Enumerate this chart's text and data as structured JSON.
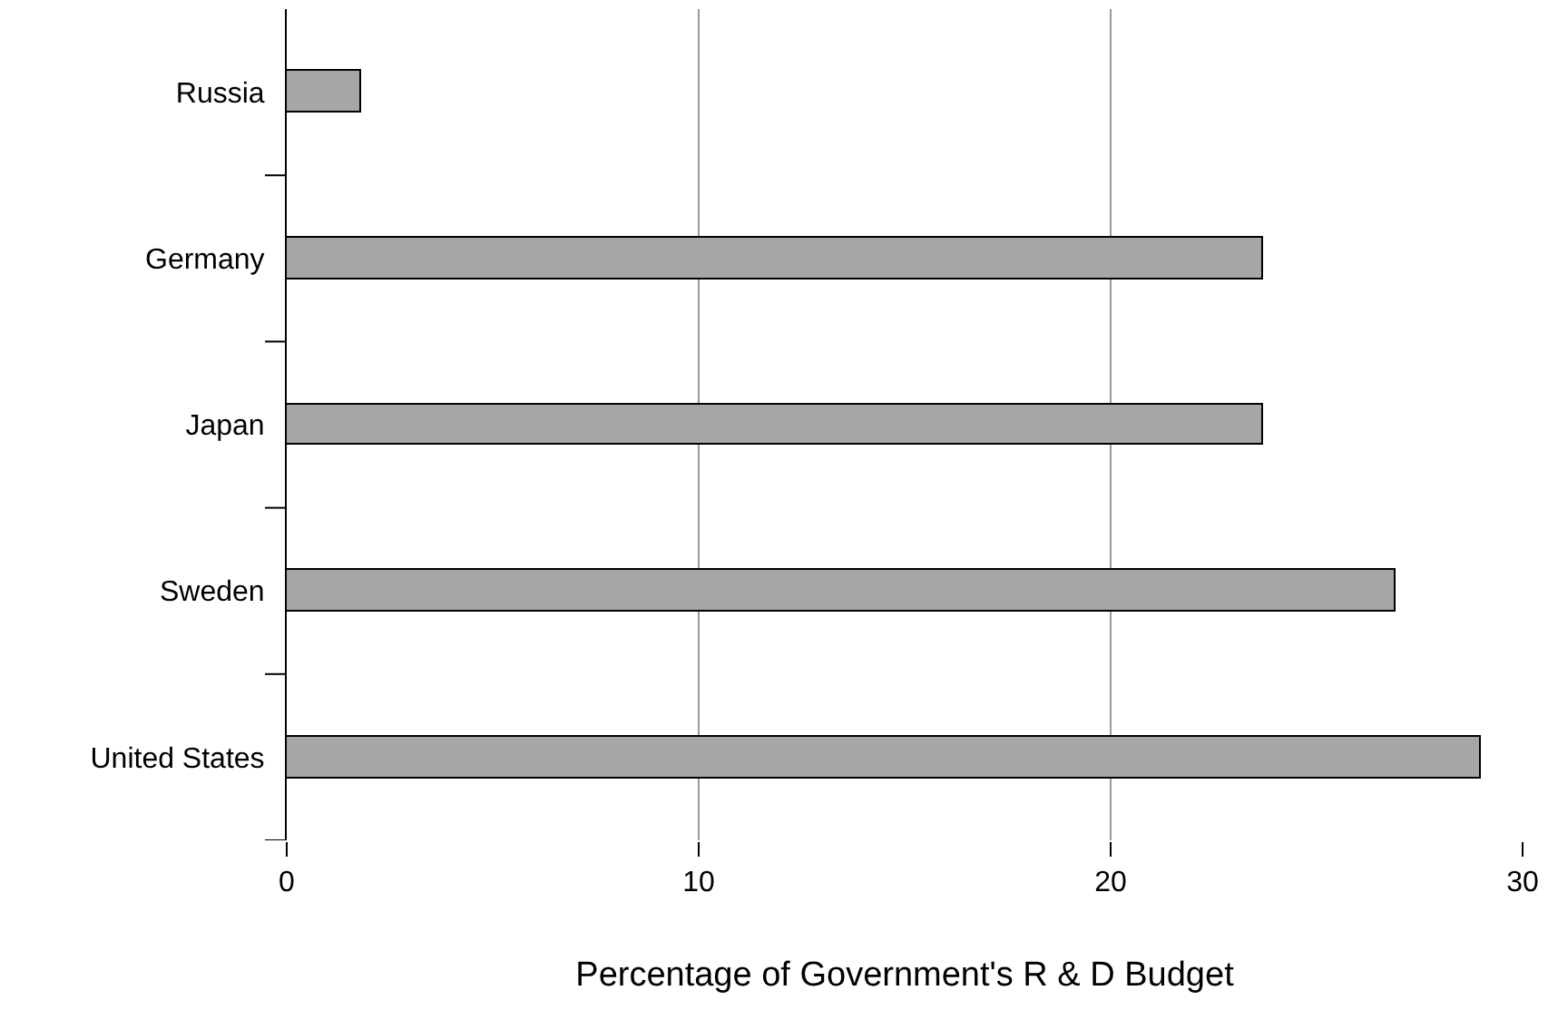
{
  "chart_data": {
    "type": "bar",
    "orientation": "horizontal",
    "categories": [
      "Russia",
      "Germany",
      "Japan",
      "Sweden",
      "United States"
    ],
    "values": [
      1.8,
      23.7,
      23.7,
      26.9,
      29.0
    ],
    "color": "#a6a6a6",
    "xlabel": "Percentage of Government's R & D Budget",
    "xlim": [
      0,
      30
    ],
    "xticks": [
      0,
      10,
      20,
      30
    ],
    "grid": "x"
  }
}
